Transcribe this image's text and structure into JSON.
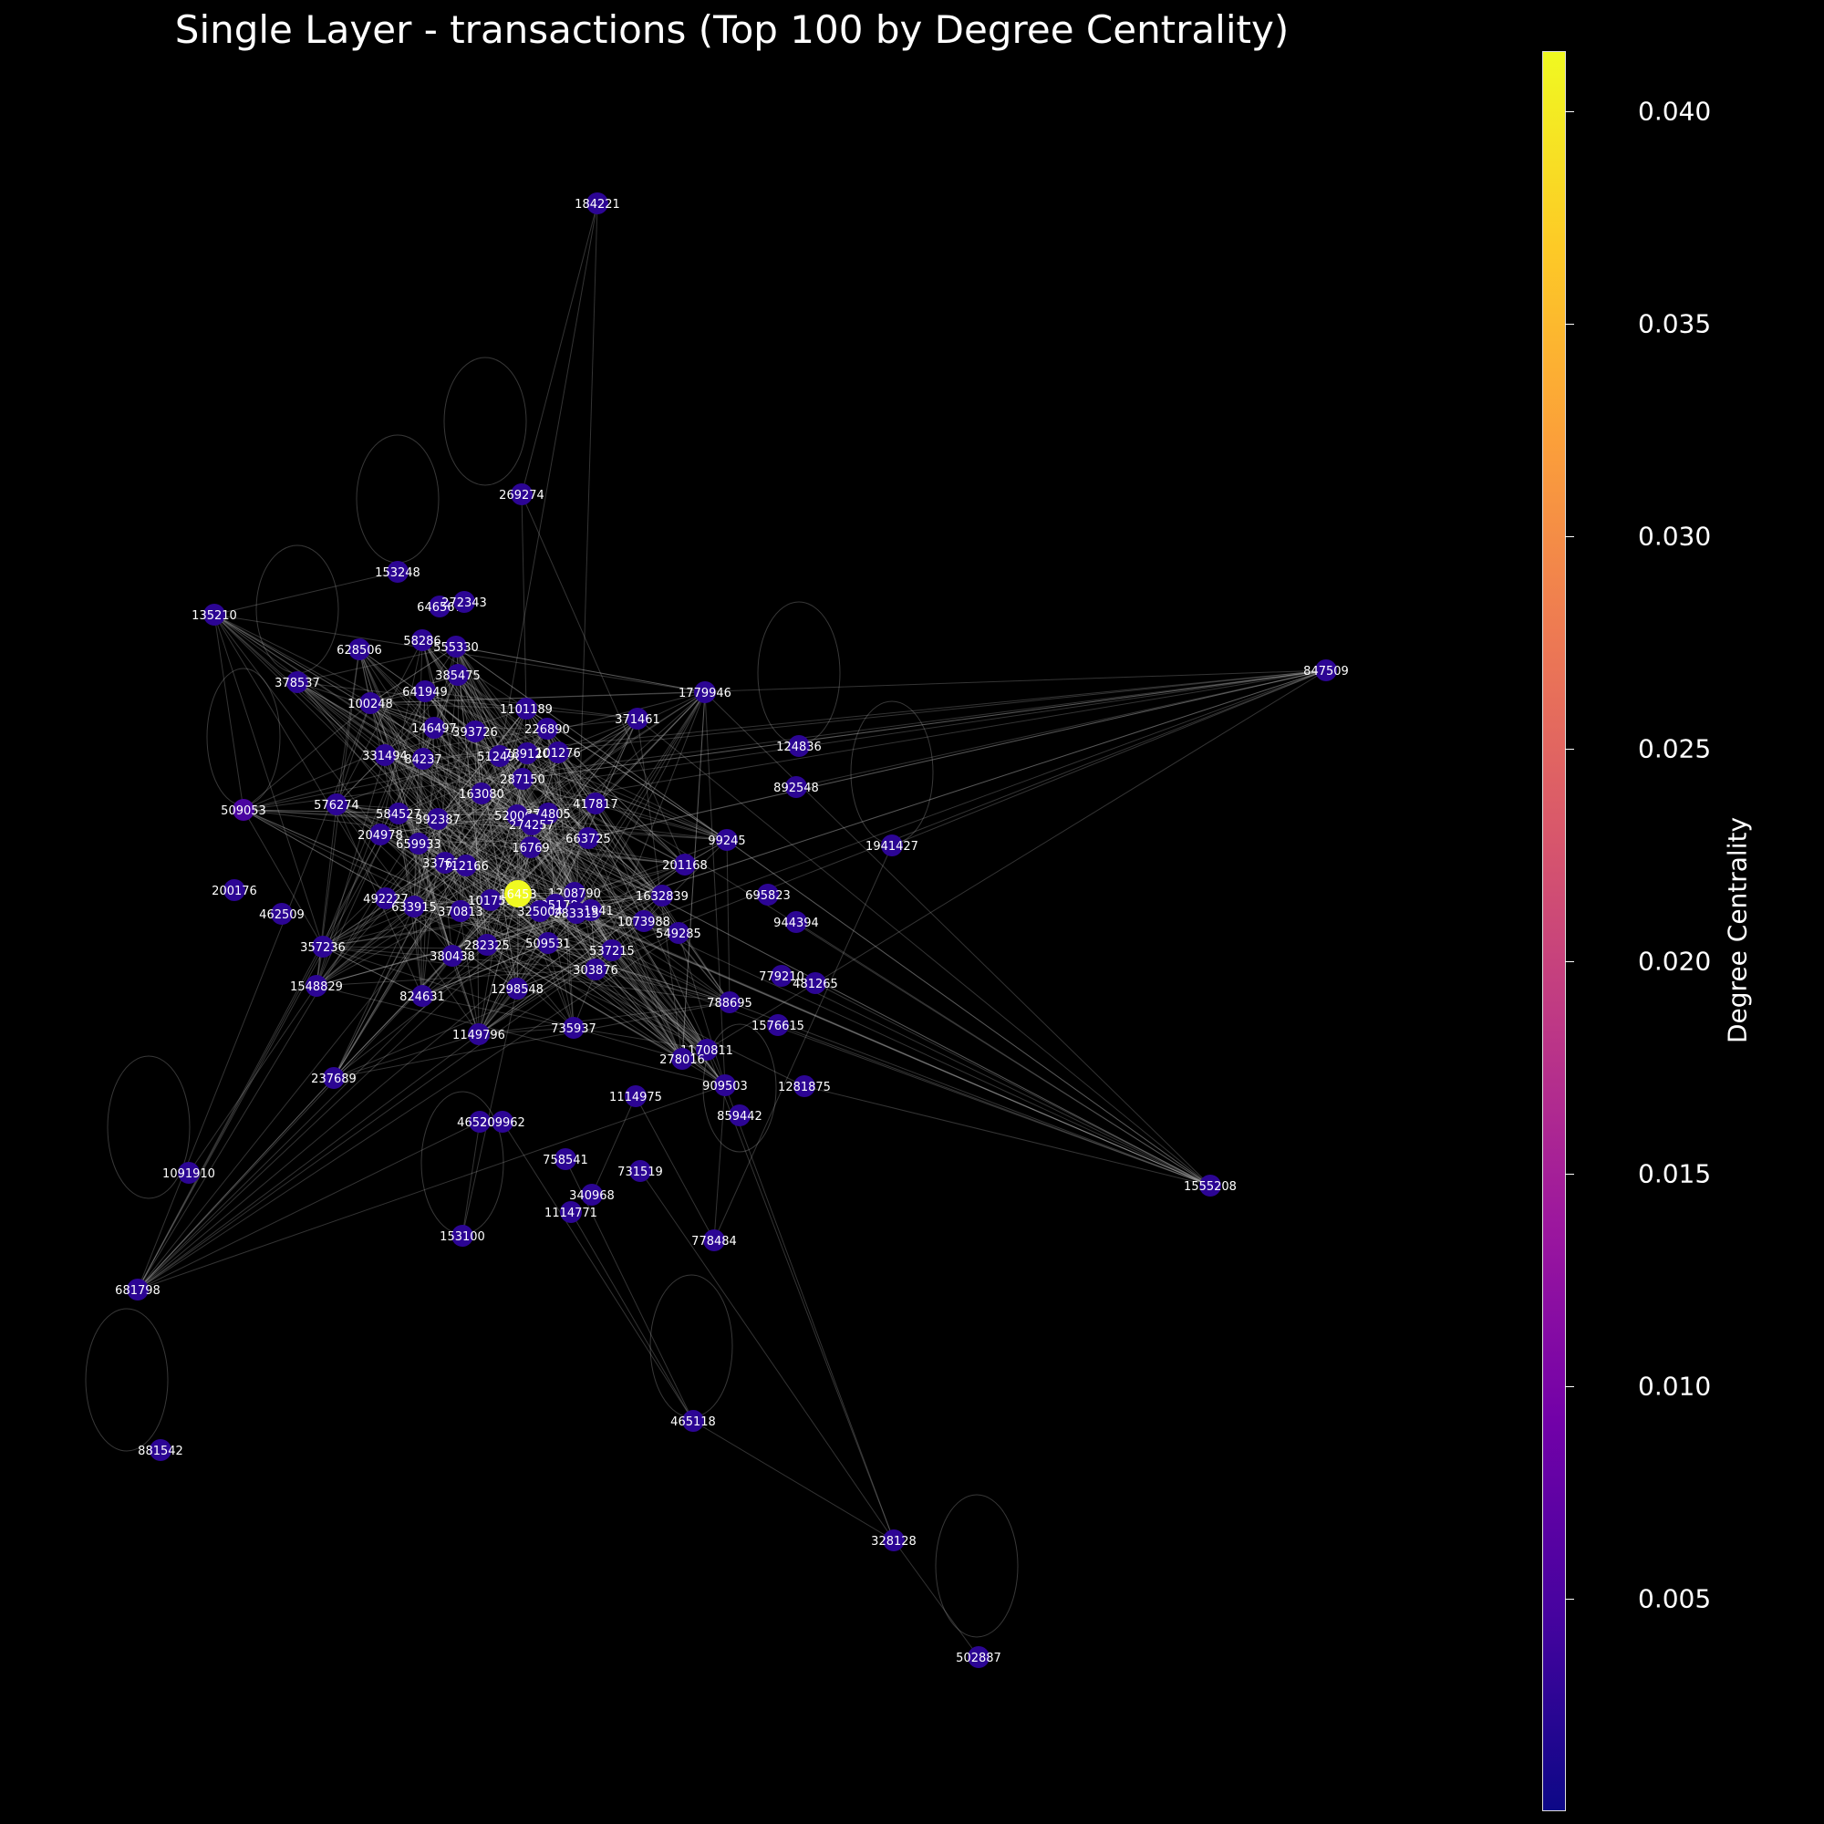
{
  "title": "Single Layer - transactions (Top 100 by Degree Centrality)",
  "colorbar": {
    "label": "Degree Centrality",
    "ticks": [
      "0.040",
      "0.035",
      "0.030",
      "0.025",
      "0.020",
      "0.015",
      "0.010",
      "0.005"
    ],
    "gradient": [
      "#0d0887",
      "#46039f",
      "#7201a8",
      "#9c179e",
      "#bd3786",
      "#d8576b",
      "#ed7953",
      "#fb9f3a",
      "#fdca26",
      "#f0f921"
    ]
  },
  "graph": {
    "node_color": "#2c0594",
    "hub_node": "16453",
    "hub_color": "#f0f921",
    "nodes": [
      "184221",
      "269274",
      "153248",
      "646567",
      "272343",
      "135210",
      "58286",
      "555330",
      "628506",
      "385475",
      "378537",
      "100248",
      "641949",
      "1101189",
      "371461",
      "1779946",
      "847509",
      "146497",
      "393726",
      "226890",
      "124836",
      "331494",
      "84237",
      "512496",
      "789120",
      "101276",
      "287150",
      "892548",
      "509053",
      "576274",
      "163080",
      "584527",
      "392387",
      "520067",
      "374805",
      "417817",
      "204978",
      "274257",
      "663725",
      "99245",
      "1941427",
      "659933",
      "16769",
      "337633",
      "712166",
      "201168",
      "200176",
      "1208790",
      "492227",
      "101751",
      "16453",
      "685178",
      "1632839",
      "695823",
      "633915",
      "325004",
      "261941",
      "462509",
      "370813",
      "283315",
      "1073988",
      "944394",
      "549285",
      "357236",
      "282325",
      "509531",
      "380438",
      "537215",
      "303876",
      "779210",
      "481265",
      "1548829",
      "824631",
      "1298548",
      "788695",
      "1576615",
      "1149796",
      "735937",
      "1170811",
      "278016",
      "237689",
      "909503",
      "1281875",
      "1114975",
      "465207",
      "209962",
      "859442",
      "1091910",
      "758541",
      "731519",
      "1555208",
      "340968",
      "1114771",
      "153100",
      "778484",
      "681798",
      "881542",
      "465118",
      "328128",
      "502887"
    ]
  }
}
